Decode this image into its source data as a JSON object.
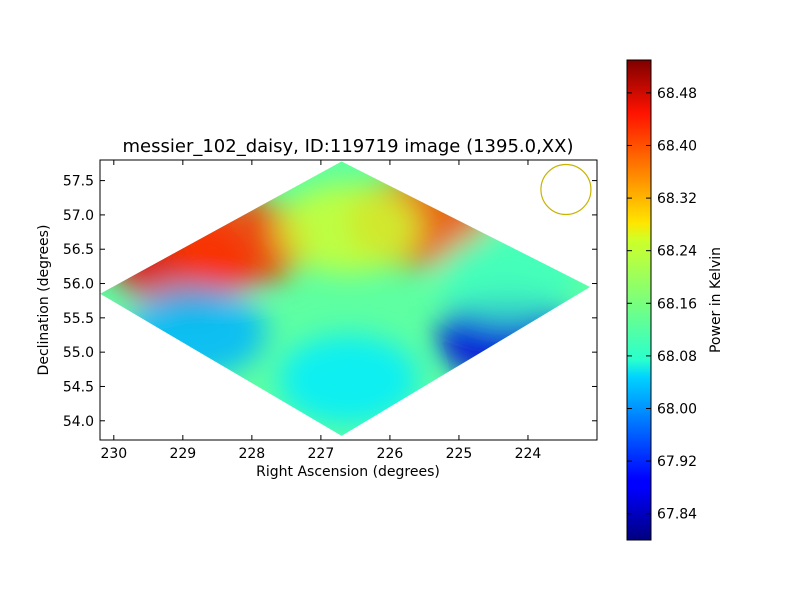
{
  "chart_data": {
    "type": "heatmap",
    "title": "messier_102_daisy, ID:119719 image (1395.0,XX)",
    "xlabel": "Right Ascension (degrees)",
    "ylabel": "Declination (degrees)",
    "xlim": [
      230.2,
      223.0
    ],
    "ylim": [
      53.72,
      57.8
    ],
    "x_ticks": [
      230,
      229,
      228,
      227,
      226,
      225,
      224
    ],
    "x_tick_labels": [
      "230",
      "229",
      "228",
      "227",
      "226",
      "225",
      "224"
    ],
    "y_ticks": [
      54.0,
      54.5,
      55.0,
      55.5,
      56.0,
      56.5,
      57.0,
      57.5
    ],
    "y_tick_labels": [
      "54.0",
      "54.5",
      "55.0",
      "55.5",
      "56.0",
      "56.5",
      "57.0",
      "57.5"
    ],
    "colorbar": {
      "label": "Power in Kelvin",
      "range": [
        67.8,
        68.53
      ],
      "ticks": [
        67.84,
        67.92,
        68.0,
        68.08,
        68.16,
        68.24,
        68.32,
        68.4,
        68.48
      ],
      "tick_labels": [
        "67.84",
        "67.92",
        "68.00",
        "68.08",
        "68.16",
        "68.24",
        "68.32",
        "68.40",
        "68.48"
      ],
      "colormap": "jet"
    },
    "footprint_vertices": [
      [
        230.2,
        55.85
      ],
      [
        226.7,
        57.78
      ],
      [
        223.1,
        55.95
      ],
      [
        226.7,
        53.78
      ]
    ],
    "features": [
      {
        "ra": 229.0,
        "dec": 56.3,
        "value": 68.45
      },
      {
        "ra": 228.2,
        "dec": 56.6,
        "value": 68.4
      },
      {
        "ra": 225.6,
        "dec": 56.9,
        "value": 68.38
      },
      {
        "ra": 226.6,
        "dec": 56.8,
        "value": 68.22
      },
      {
        "ra": 226.6,
        "dec": 54.6,
        "value": 68.06
      },
      {
        "ra": 224.3,
        "dec": 55.2,
        "value": 67.87
      },
      {
        "ra": 228.8,
        "dec": 55.3,
        "value": 68.02
      },
      {
        "ra": 224.3,
        "dec": 56.1,
        "value": 68.12
      }
    ],
    "beam_marker": {
      "shape": "circle",
      "ra": 223.45,
      "dec": 57.37,
      "color": "#c8b400"
    }
  }
}
